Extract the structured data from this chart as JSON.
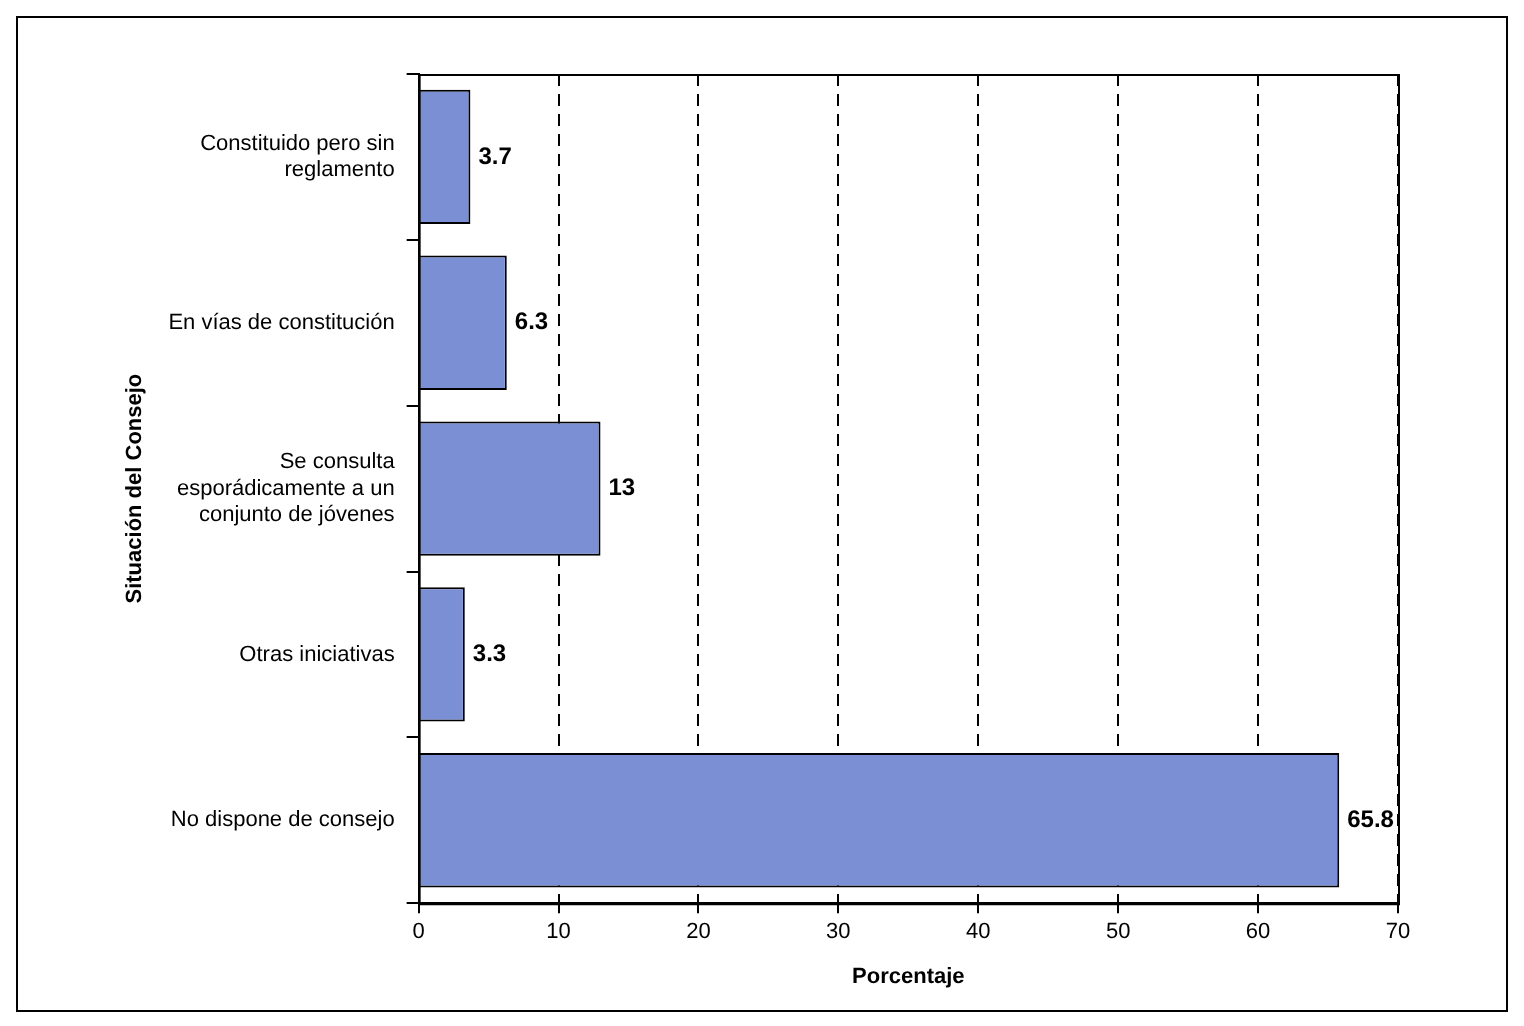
{
  "chart_data": {
    "type": "bar",
    "orientation": "horizontal",
    "categories": [
      "Constituido pero sin reglamento",
      "En vías de constitución",
      "Se consulta esporádicamente a un conjunto de jóvenes",
      "Otras iniciativas",
      "No dispone de consejo"
    ],
    "values": [
      3.7,
      6.3,
      13,
      3.3,
      65.8
    ],
    "color": "#7b8fd4",
    "xlabel": "Porcentaje",
    "ylabel": "Situación del Consejo",
    "xlim": [
      0,
      70
    ],
    "xticks": [
      0,
      10,
      20,
      30,
      40,
      50,
      60,
      70
    ],
    "grid": "x",
    "data_labels": true,
    "legend": false
  }
}
